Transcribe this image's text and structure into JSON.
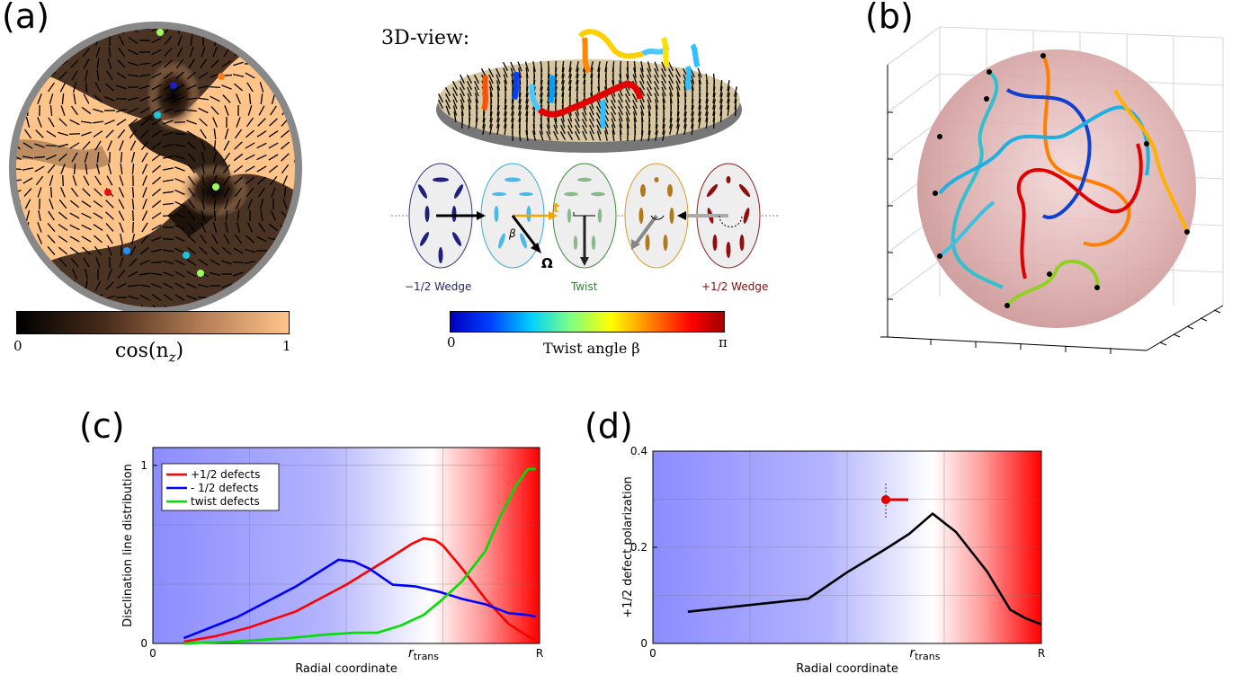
{
  "panels": {
    "a": {
      "label": "(a)",
      "colorbar": {
        "tick_min": "0",
        "tick_max": "1",
        "label": "cos(n",
        "label_sub": "z",
        "label_close": ")"
      },
      "colors": {
        "dark": "#000000",
        "mid": "#8a5a3c",
        "light": "#ffc48a",
        "rim": "#888888"
      }
    },
    "three_d": {
      "label": "3D-view:",
      "ellipse_labels": {
        "left": "−1/2 Wedge",
        "center": "Twist",
        "right": "+1/2 Wedge"
      },
      "symbols": {
        "beta": "β",
        "t": "t",
        "omega": "Ω"
      },
      "colorbar": {
        "tick_min": "0",
        "tick_max": "π",
        "label": "Twist angle β"
      }
    },
    "b": {
      "label": "(b)"
    },
    "c": {
      "label": "(c)"
    },
    "d": {
      "label": "(d)"
    }
  },
  "chart_data": [
    {
      "id": "c",
      "type": "line",
      "ylabel": "Disclination line distribution",
      "xlabel": "Radial coordinate",
      "xlim": [
        0,
        1
      ],
      "ylim": [
        0,
        1.1
      ],
      "x_ticks": [
        {
          "x": 0,
          "label": "0"
        },
        {
          "x": 0.7,
          "label": "r",
          "sub": "trans"
        },
        {
          "x": 1,
          "label": "R"
        }
      ],
      "y_ticks": [
        {
          "y": 0,
          "label": "0"
        },
        {
          "y": 1,
          "label": "1"
        }
      ],
      "grid": true,
      "legend": "top-left",
      "series": [
        {
          "name": "+1/2 defects",
          "color": "#ff0000",
          "x": [
            0.08,
            0.16,
            0.25,
            0.37,
            0.5,
            0.62,
            0.67,
            0.7,
            0.73,
            0.75,
            0.8,
            0.86,
            0.92,
            0.97,
            0.99
          ],
          "y": [
            0.01,
            0.04,
            0.09,
            0.18,
            0.33,
            0.49,
            0.56,
            0.59,
            0.58,
            0.55,
            0.42,
            0.25,
            0.11,
            0.04,
            0.02
          ]
        },
        {
          "name": "- 1/2 defects",
          "color": "#0000ff",
          "x": [
            0.08,
            0.22,
            0.37,
            0.48,
            0.52,
            0.56,
            0.62,
            0.68,
            0.74,
            0.8,
            0.86,
            0.92,
            0.97,
            0.99
          ],
          "y": [
            0.03,
            0.15,
            0.32,
            0.47,
            0.46,
            0.42,
            0.33,
            0.32,
            0.29,
            0.25,
            0.22,
            0.17,
            0.16,
            0.15
          ]
        },
        {
          "name": "twist defects",
          "color": "#00e000",
          "x": [
            0.08,
            0.2,
            0.35,
            0.45,
            0.52,
            0.58,
            0.64,
            0.7,
            0.75,
            0.8,
            0.86,
            0.9,
            0.94,
            0.97,
            0.99
          ],
          "y": [
            0.0,
            0.01,
            0.03,
            0.05,
            0.06,
            0.06,
            0.1,
            0.16,
            0.25,
            0.35,
            0.52,
            0.72,
            0.89,
            0.98,
            0.98
          ]
        }
      ],
      "background_gradient": {
        "left": "#8c8cff",
        "mid": "#ffffff",
        "right": "#ff0000"
      }
    },
    {
      "id": "d",
      "type": "line",
      "ylabel": "+1/2 defect polarization",
      "xlabel": "Radial coordinate",
      "xlim": [
        0,
        1
      ],
      "ylim": [
        0,
        0.4
      ],
      "x_ticks": [
        {
          "x": 0,
          "label": "0"
        },
        {
          "x": 0.7,
          "label": "r",
          "sub": "trans"
        },
        {
          "x": 1,
          "label": "R"
        }
      ],
      "y_ticks": [
        {
          "y": 0,
          "label": "0"
        },
        {
          "y": 0.2,
          "label": "0.2"
        },
        {
          "y": 0.4,
          "label": "0.4"
        }
      ],
      "grid": true,
      "series": [
        {
          "name": "",
          "color": "#000000",
          "x": [
            0.09,
            0.25,
            0.4,
            0.5,
            0.6,
            0.66,
            0.72,
            0.78,
            0.86,
            0.92,
            0.96,
            1.0
          ],
          "y": [
            0.066,
            0.08,
            0.093,
            0.148,
            0.197,
            0.228,
            0.27,
            0.232,
            0.15,
            0.07,
            0.052,
            0.04
          ]
        }
      ],
      "background_gradient": {
        "left": "#8c8cff",
        "mid": "#ffffff",
        "right": "#ff0000"
      }
    }
  ]
}
